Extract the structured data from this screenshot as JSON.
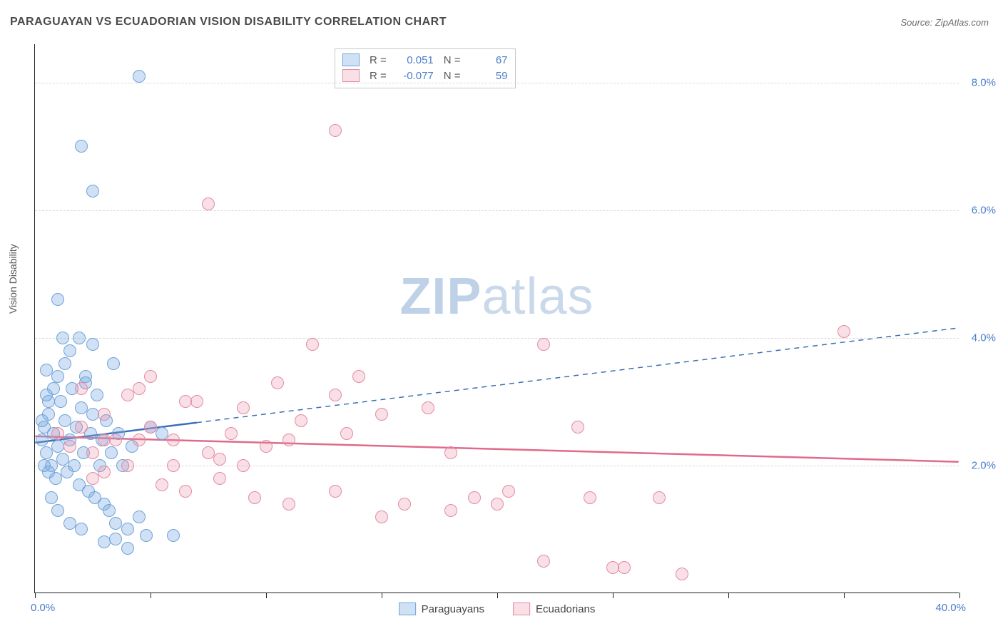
{
  "title": "PARAGUAYAN VS ECUADORIAN VISION DISABILITY CORRELATION CHART",
  "source_prefix": "Source: ",
  "source_name": "ZipAtlas.com",
  "y_axis_label": "Vision Disability",
  "watermark": {
    "part1": "ZIP",
    "part2": "atlas"
  },
  "chart": {
    "type": "scatter",
    "background_color": "#ffffff",
    "grid_color": "#d9d9d9",
    "axis_color": "#222222",
    "tick_label_color": "#4a7ec9",
    "xlim": [
      0,
      40
    ],
    "ylim": [
      0,
      8.6
    ],
    "x_tick_positions": [
      0,
      5,
      10,
      15,
      20,
      25,
      30,
      35,
      40
    ],
    "x_min_label": "0.0%",
    "x_max_label": "40.0%",
    "y_gridlines": [
      {
        "value": 2.0,
        "label": "2.0%"
      },
      {
        "value": 4.0,
        "label": "4.0%"
      },
      {
        "value": 6.0,
        "label": "6.0%"
      },
      {
        "value": 8.0,
        "label": "8.0%"
      }
    ],
    "marker_radius": 9,
    "marker_border_width": 1.5,
    "series": [
      {
        "name": "Paraguayans",
        "fill_color": "rgba(120,170,225,0.35)",
        "border_color": "#6fa3d8",
        "trend_color": "#3b6fb5",
        "trend_solid_xmax": 7.0,
        "trend_start_y": 2.35,
        "trend_end_y": 4.15,
        "R": "0.051",
        "N": "67",
        "points": [
          [
            0.3,
            2.4
          ],
          [
            0.4,
            2.6
          ],
          [
            0.5,
            2.2
          ],
          [
            0.6,
            2.8
          ],
          [
            0.7,
            2.0
          ],
          [
            0.8,
            2.5
          ],
          [
            0.9,
            1.8
          ],
          [
            1.0,
            2.3
          ],
          [
            1.1,
            3.0
          ],
          [
            1.2,
            2.1
          ],
          [
            1.3,
            2.7
          ],
          [
            1.4,
            1.9
          ],
          [
            1.5,
            2.4
          ],
          [
            1.6,
            3.2
          ],
          [
            1.7,
            2.0
          ],
          [
            1.8,
            2.6
          ],
          [
            1.9,
            1.7
          ],
          [
            2.0,
            2.9
          ],
          [
            2.1,
            2.2
          ],
          [
            2.2,
            3.4
          ],
          [
            2.3,
            1.6
          ],
          [
            2.4,
            2.5
          ],
          [
            2.5,
            2.8
          ],
          [
            2.6,
            1.5
          ],
          [
            2.7,
            3.1
          ],
          [
            2.8,
            2.0
          ],
          [
            2.9,
            2.4
          ],
          [
            3.0,
            1.4
          ],
          [
            3.1,
            2.7
          ],
          [
            3.2,
            1.3
          ],
          [
            3.3,
            2.2
          ],
          [
            3.4,
            3.6
          ],
          [
            3.5,
            1.1
          ],
          [
            3.6,
            2.5
          ],
          [
            3.8,
            2.0
          ],
          [
            4.0,
            1.0
          ],
          [
            4.2,
            2.3
          ],
          [
            4.5,
            1.2
          ],
          [
            4.8,
            0.9
          ],
          [
            5.0,
            2.6
          ],
          [
            0.6,
            3.0
          ],
          [
            0.8,
            3.2
          ],
          [
            1.0,
            3.4
          ],
          [
            1.3,
            3.6
          ],
          [
            1.5,
            3.8
          ],
          [
            1.0,
            4.6
          ],
          [
            1.9,
            4.0
          ],
          [
            2.2,
            3.3
          ],
          [
            2.5,
            3.9
          ],
          [
            1.2,
            4.0
          ],
          [
            0.5,
            3.5
          ],
          [
            0.7,
            1.5
          ],
          [
            1.0,
            1.3
          ],
          [
            1.5,
            1.1
          ],
          [
            2.0,
            1.0
          ],
          [
            3.0,
            0.8
          ],
          [
            3.5,
            0.85
          ],
          [
            2.0,
            7.0
          ],
          [
            2.5,
            6.3
          ],
          [
            4.5,
            8.1
          ],
          [
            0.4,
            2.0
          ],
          [
            0.6,
            1.9
          ],
          [
            0.3,
            2.7
          ],
          [
            0.5,
            3.1
          ],
          [
            4.0,
            0.7
          ],
          [
            6.0,
            0.9
          ],
          [
            5.5,
            2.5
          ]
        ]
      },
      {
        "name": "Ecuadorians",
        "fill_color": "rgba(235,140,165,0.28)",
        "border_color": "#e38ba3",
        "trend_color": "#e06a8a",
        "trend_solid_xmax": 40.0,
        "trend_start_y": 2.45,
        "trend_end_y": 2.05,
        "R": "-0.077",
        "N": "59",
        "points": [
          [
            1.0,
            2.5
          ],
          [
            1.5,
            2.3
          ],
          [
            2.0,
            2.6
          ],
          [
            2.5,
            2.2
          ],
          [
            3.0,
            2.8
          ],
          [
            3.5,
            2.4
          ],
          [
            4.0,
            2.0
          ],
          [
            4.5,
            3.2
          ],
          [
            5.0,
            2.6
          ],
          [
            5.5,
            1.7
          ],
          [
            6.0,
            2.4
          ],
          [
            6.5,
            1.6
          ],
          [
            7.0,
            3.0
          ],
          [
            7.5,
            2.2
          ],
          [
            8.0,
            1.8
          ],
          [
            8.5,
            2.5
          ],
          [
            9.0,
            2.9
          ],
          [
            9.5,
            1.5
          ],
          [
            10.0,
            2.3
          ],
          [
            10.5,
            3.3
          ],
          [
            11.0,
            1.4
          ],
          [
            11.5,
            2.7
          ],
          [
            12.0,
            3.9
          ],
          [
            13.0,
            3.1
          ],
          [
            13.0,
            1.6
          ],
          [
            14.0,
            3.4
          ],
          [
            15.0,
            1.2
          ],
          [
            15.0,
            2.8
          ],
          [
            16.0,
            1.4
          ],
          [
            17.0,
            2.9
          ],
          [
            18.0,
            1.3
          ],
          [
            18.0,
            2.2
          ],
          [
            19.0,
            1.5
          ],
          [
            20.0,
            1.4
          ],
          [
            20.5,
            1.6
          ],
          [
            22.0,
            3.9
          ],
          [
            22.0,
            0.5
          ],
          [
            23.5,
            2.6
          ],
          [
            24.0,
            1.5
          ],
          [
            25.0,
            0.4
          ],
          [
            25.5,
            0.4
          ],
          [
            27.0,
            1.5
          ],
          [
            28.0,
            0.3
          ],
          [
            7.5,
            6.1
          ],
          [
            13.0,
            7.25
          ],
          [
            35.0,
            4.1
          ],
          [
            4.0,
            3.1
          ],
          [
            3.0,
            1.9
          ],
          [
            2.0,
            3.2
          ],
          [
            5.0,
            3.4
          ],
          [
            6.0,
            2.0
          ],
          [
            4.5,
            2.4
          ],
          [
            8.0,
            2.1
          ],
          [
            9.0,
            2.0
          ],
          [
            3.0,
            2.4
          ],
          [
            2.5,
            1.8
          ],
          [
            6.5,
            3.0
          ],
          [
            11.0,
            2.4
          ],
          [
            13.5,
            2.5
          ]
        ]
      }
    ]
  },
  "stats_box": {
    "R_label": "R =",
    "N_label": "N ="
  }
}
